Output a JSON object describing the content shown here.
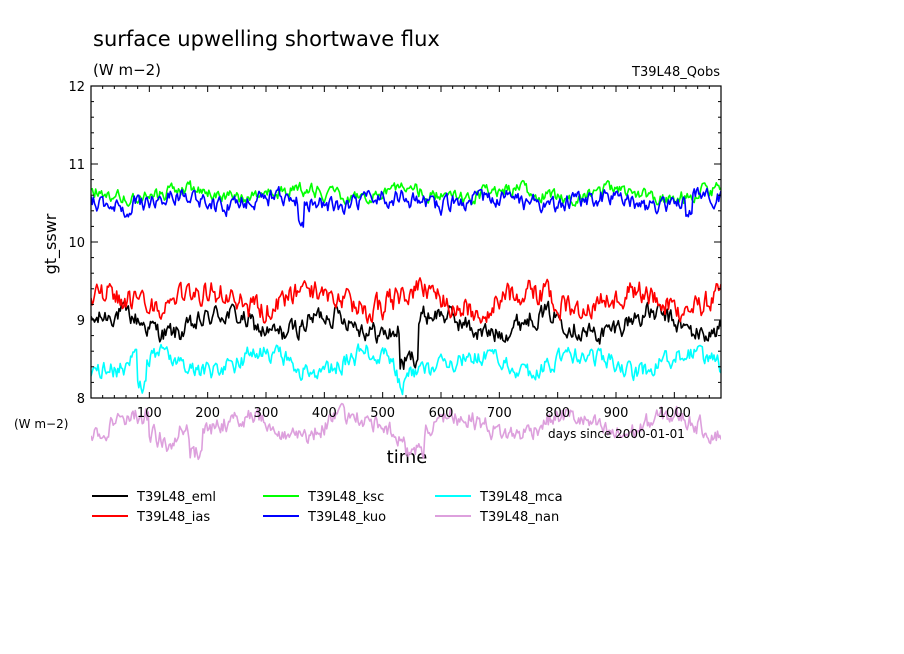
{
  "chart_data": {
    "type": "line",
    "title": "surface upwelling shortwave flux",
    "subtitle": "(W m−2)",
    "run_label": "T39L48_Qobs",
    "ylabel": "gt_sswr",
    "xlabel": "time",
    "x_units": "days since 2000-01-01",
    "y_units_left": "(W m−2)",
    "xlim": [
      0,
      1080
    ],
    "ylim": [
      8,
      12
    ],
    "xticks": [
      100,
      200,
      300,
      400,
      500,
      600,
      700,
      800,
      900,
      1000
    ],
    "yticks": [
      8,
      9,
      10,
      11,
      12
    ],
    "grid": false,
    "legend_position": "bottom",
    "series": [
      {
        "name": "T39L48_eml",
        "color": "#000000",
        "mean": 8.95,
        "amp": 0.13,
        "noise": 0.11,
        "dip": [
          [
            530,
            560,
            -0.45
          ]
        ]
      },
      {
        "name": "T39L48_ias",
        "color": "#ff0000",
        "mean": 9.25,
        "amp": 0.12,
        "noise": 0.13,
        "dip": []
      },
      {
        "name": "T39L48_ksc",
        "color": "#00ff00",
        "mean": 10.62,
        "amp": 0.06,
        "noise": 0.07,
        "dip": []
      },
      {
        "name": "T39L48_kuo",
        "color": "#0000ff",
        "mean": 10.52,
        "amp": 0.06,
        "noise": 0.09,
        "dip": [
          [
            355,
            365,
            -0.3
          ],
          [
            1020,
            1030,
            -0.25
          ]
        ]
      },
      {
        "name": "T39L48_mca",
        "color": "#00ffff",
        "mean": 8.45,
        "amp": 0.12,
        "noise": 0.1,
        "dip": [
          [
            80,
            95,
            -0.35
          ],
          [
            520,
            545,
            -0.2
          ]
        ]
      },
      {
        "name": "T39L48_nan",
        "color": "#dda0dd",
        "mean": 7.65,
        "amp": 0.12,
        "noise": 0.1,
        "dip": [
          [
            100,
            150,
            -0.2
          ],
          [
            170,
            190,
            -0.25
          ],
          [
            540,
            570,
            -0.25
          ]
        ]
      }
    ]
  }
}
